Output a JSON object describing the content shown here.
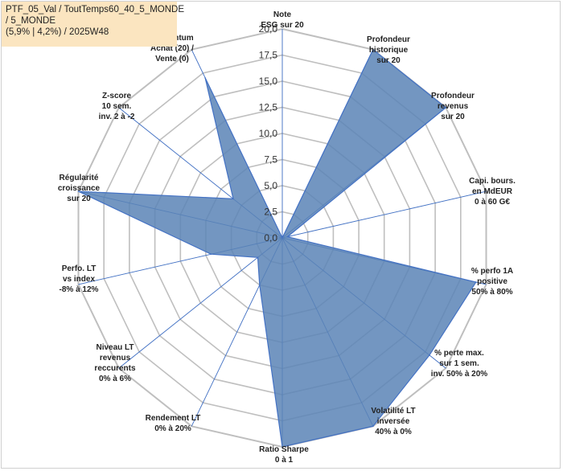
{
  "title_box": {
    "line1": "PTF_05_Val / ToutTemps60_40_5_MONDE",
    "line2": " / 5_MONDE",
    "line3": "(5,9% | 4,2%) / 2025W48"
  },
  "chart_data": {
    "type": "radar",
    "rlim": [
      0,
      20
    ],
    "tick_step": 2.5,
    "tick_labels": [
      "0,0",
      "2,5",
      "5,0",
      "7,5",
      "10,0",
      "12,5",
      "15,0",
      "17,5",
      "20,0"
    ],
    "grid": true,
    "categories": [
      [
        "Note",
        "ESG sur 20"
      ],
      [
        "Profondeur",
        "historique",
        "sur 20"
      ],
      [
        "Profondeur",
        "revenus",
        "sur 20"
      ],
      [
        "Capi. bours.",
        "en MdEUR",
        "0 à 60 G€"
      ],
      [
        "% perfo 1A",
        "positive",
        "50% à 80%"
      ],
      [
        "% perte max.",
        "sur 1 sem.",
        "inv. 50% à 20%"
      ],
      [
        "Volatilité LT",
        "inversée",
        "40% à 0%"
      ],
      [
        "Ratio Sharpe",
        "0 à 1"
      ],
      [
        "Rendement LT",
        "0% à 20%"
      ],
      [
        "Niveau LT",
        "revenus",
        "reccurents",
        "0% à 6%"
      ],
      [
        "Perfo. LT",
        "vs index",
        "-8% à 12%"
      ],
      [
        "Régularité",
        "croissance",
        "sur 20"
      ],
      [
        "Z-score",
        "10 sem.",
        "inv. 2 à -2"
      ],
      [
        "Momentum",
        "Achat (20) /",
        "Vente (0)"
      ]
    ],
    "series": [
      {
        "values": [
          0,
          20,
          20,
          0.5,
          19,
          18,
          20,
          20,
          5,
          3,
          7,
          20,
          6,
          17
        ],
        "fill": "#5b84b6",
        "stroke": "#4472c4"
      }
    ],
    "colors": {
      "grid": "#bfbfbf",
      "axis": "#4472c4"
    }
  }
}
